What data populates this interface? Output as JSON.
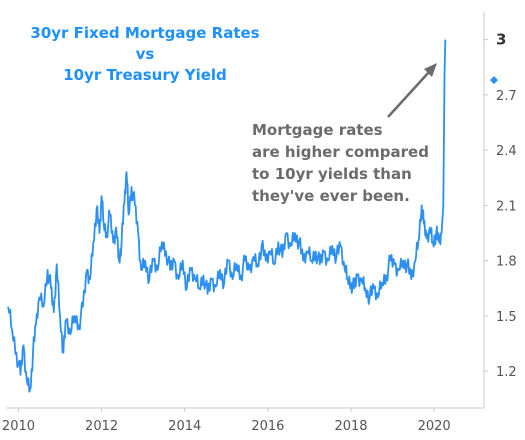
{
  "chart_data": {
    "type": "line",
    "title": "30yr Fixed Mortgage Rates",
    "title_line2": "vs",
    "title_line3": "10yr Treasury Yield",
    "xlabel": "",
    "ylabel": "",
    "xlim": [
      2009.7,
      2021.2
    ],
    "ylim": [
      1.0,
      3.15
    ],
    "x_ticks": [
      "2010",
      "2012",
      "2014",
      "2016",
      "2018",
      "2020"
    ],
    "y_ticks": [
      "1.2",
      "1.5",
      "1.8",
      "2.1",
      "2.4",
      "2.7",
      "3"
    ],
    "grid": false,
    "legend": "none",
    "colors": {
      "line": "#2d8ff0",
      "title": "#1e90ff",
      "annotation": "#6b6b6b",
      "axis": "#c8c8c8"
    },
    "annotation": {
      "lines": [
        "Mortgage rates",
        "are higher compared",
        "to 10yr yields than",
        "they've ever been."
      ],
      "arrow_to": [
        2020.25,
        3.0
      ]
    },
    "last_value_marker": {
      "x": 2021.2,
      "y": 2.78
    },
    "series": [
      {
        "values": [
          [
            2009.75,
            1.55
          ],
          [
            2009.85,
            1.42
          ],
          [
            2009.95,
            1.3
          ],
          [
            2010.05,
            1.18
          ],
          [
            2010.12,
            1.34
          ],
          [
            2010.2,
            1.15
          ],
          [
            2010.28,
            1.1
          ],
          [
            2010.35,
            1.3
          ],
          [
            2010.42,
            1.45
          ],
          [
            2010.5,
            1.6
          ],
          [
            2010.6,
            1.55
          ],
          [
            2010.7,
            1.75
          ],
          [
            2010.78,
            1.65
          ],
          [
            2010.85,
            1.52
          ],
          [
            2010.92,
            1.78
          ],
          [
            2011.0,
            1.5
          ],
          [
            2011.08,
            1.3
          ],
          [
            2011.15,
            1.48
          ],
          [
            2011.25,
            1.4
          ],
          [
            2011.35,
            1.5
          ],
          [
            2011.45,
            1.45
          ],
          [
            2011.55,
            1.55
          ],
          [
            2011.65,
            1.75
          ],
          [
            2011.72,
            1.7
          ],
          [
            2011.8,
            1.9
          ],
          [
            2011.88,
            2.08
          ],
          [
            2011.95,
            1.95
          ],
          [
            2012.0,
            2.15
          ],
          [
            2012.05,
            2.0
          ],
          [
            2012.12,
            1.95
          ],
          [
            2012.2,
            2.05
          ],
          [
            2012.28,
            1.9
          ],
          [
            2012.35,
            1.98
          ],
          [
            2012.42,
            1.8
          ],
          [
            2012.48,
            1.9
          ],
          [
            2012.55,
            2.12
          ],
          [
            2012.6,
            2.28
          ],
          [
            2012.65,
            2.05
          ],
          [
            2012.72,
            2.2
          ],
          [
            2012.8,
            2.1
          ],
          [
            2012.88,
            1.95
          ],
          [
            2012.95,
            1.75
          ],
          [
            2013.05,
            1.8
          ],
          [
            2013.15,
            1.7
          ],
          [
            2013.25,
            1.8
          ],
          [
            2013.35,
            1.75
          ],
          [
            2013.45,
            1.9
          ],
          [
            2013.55,
            1.85
          ],
          [
            2013.65,
            1.75
          ],
          [
            2013.75,
            1.8
          ],
          [
            2013.85,
            1.7
          ],
          [
            2013.95,
            1.8
          ],
          [
            2014.05,
            1.65
          ],
          [
            2014.15,
            1.75
          ],
          [
            2014.25,
            1.7
          ],
          [
            2014.35,
            1.65
          ],
          [
            2014.45,
            1.72
          ],
          [
            2014.55,
            1.62
          ],
          [
            2014.65,
            1.7
          ],
          [
            2014.75,
            1.66
          ],
          [
            2014.85,
            1.75
          ],
          [
            2014.95,
            1.68
          ],
          [
            2015.05,
            1.8
          ],
          [
            2015.15,
            1.7
          ],
          [
            2015.25,
            1.78
          ],
          [
            2015.35,
            1.72
          ],
          [
            2015.45,
            1.8
          ],
          [
            2015.55,
            1.75
          ],
          [
            2015.65,
            1.82
          ],
          [
            2015.75,
            1.78
          ],
          [
            2015.85,
            1.88
          ],
          [
            2015.95,
            1.8
          ],
          [
            2016.05,
            1.85
          ],
          [
            2016.15,
            1.78
          ],
          [
            2016.25,
            1.9
          ],
          [
            2016.35,
            1.82
          ],
          [
            2016.45,
            1.95
          ],
          [
            2016.55,
            1.88
          ],
          [
            2016.65,
            1.95
          ],
          [
            2016.75,
            1.9
          ],
          [
            2016.85,
            1.8
          ],
          [
            2016.95,
            1.85
          ],
          [
            2017.05,
            1.8
          ],
          [
            2017.15,
            1.85
          ],
          [
            2017.25,
            1.78
          ],
          [
            2017.35,
            1.85
          ],
          [
            2017.45,
            1.8
          ],
          [
            2017.55,
            1.88
          ],
          [
            2017.65,
            1.82
          ],
          [
            2017.75,
            1.88
          ],
          [
            2017.85,
            1.75
          ],
          [
            2017.92,
            1.7
          ],
          [
            2018.0,
            1.68
          ],
          [
            2018.08,
            1.65
          ],
          [
            2018.15,
            1.72
          ],
          [
            2018.25,
            1.7
          ],
          [
            2018.35,
            1.65
          ],
          [
            2018.45,
            1.6
          ],
          [
            2018.55,
            1.65
          ],
          [
            2018.65,
            1.6
          ],
          [
            2018.75,
            1.68
          ],
          [
            2018.85,
            1.72
          ],
          [
            2018.95,
            1.8
          ],
          [
            2019.05,
            1.78
          ],
          [
            2019.15,
            1.75
          ],
          [
            2019.25,
            1.8
          ],
          [
            2019.35,
            1.78
          ],
          [
            2019.45,
            1.7
          ],
          [
            2019.55,
            1.8
          ],
          [
            2019.62,
            1.9
          ],
          [
            2019.7,
            2.1
          ],
          [
            2019.75,
            2.0
          ],
          [
            2019.82,
            1.92
          ],
          [
            2019.9,
            1.98
          ],
          [
            2019.97,
            1.9
          ],
          [
            2020.05,
            1.95
          ],
          [
            2020.12,
            1.9
          ],
          [
            2020.18,
            1.95
          ],
          [
            2020.22,
            2.1
          ],
          [
            2020.25,
            2.8
          ],
          [
            2020.27,
            3.0
          ]
        ]
      }
    ]
  }
}
